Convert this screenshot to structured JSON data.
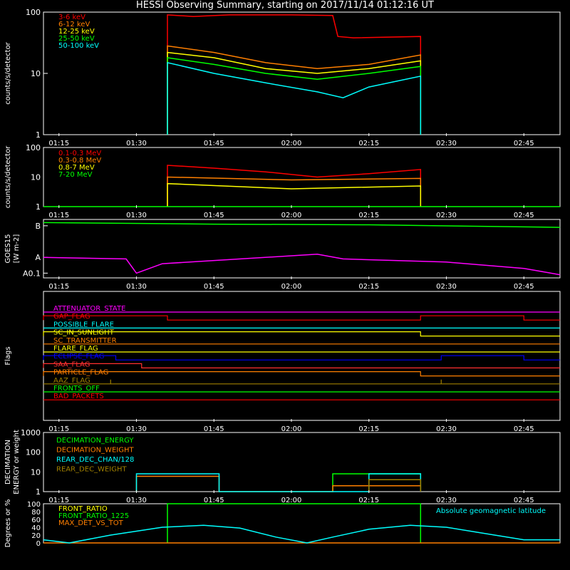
{
  "title": "HESSI Observing Summary, starting on 2017/11/14 01:12:16 UT",
  "time_ticks": [
    "01:15",
    "01:30",
    "01:45",
    "02:00",
    "02:15",
    "02:30",
    "02:45"
  ],
  "chart_data": [
    {
      "type": "line",
      "ylabel": "counts/s/detector",
      "yscale": "log",
      "ylim": [
        1,
        100
      ],
      "yticks": [
        "1",
        "10",
        "100"
      ],
      "legend_placement": "top-left",
      "series": [
        {
          "name": "3-6 keV",
          "color": "#ff0000",
          "points": [
            [
              "01:36",
              1
            ],
            [
              "01:36",
              90
            ],
            [
              "01:41",
              85
            ],
            [
              "01:48",
              90
            ],
            [
              "02:00",
              90
            ],
            [
              "02:08",
              88
            ],
            [
              "02:09",
              40
            ],
            [
              "02:12",
              38
            ],
            [
              "02:25",
              40
            ],
            [
              "02:25",
              1
            ]
          ]
        },
        {
          "name": "6-12 keV",
          "color": "#ff7f00",
          "points": [
            [
              "01:36",
              1
            ],
            [
              "01:36",
              28
            ],
            [
              "01:45",
              22
            ],
            [
              "01:55",
              15
            ],
            [
              "02:05",
              12
            ],
            [
              "02:15",
              14
            ],
            [
              "02:25",
              20
            ],
            [
              "02:25",
              1
            ]
          ]
        },
        {
          "name": "12-25 keV",
          "color": "#ffff00",
          "points": [
            [
              "01:36",
              1
            ],
            [
              "01:36",
              22
            ],
            [
              "01:45",
              18
            ],
            [
              "01:55",
              12
            ],
            [
              "02:05",
              10
            ],
            [
              "02:15",
              12
            ],
            [
              "02:25",
              16
            ],
            [
              "02:25",
              1
            ]
          ]
        },
        {
          "name": "25-50 keV",
          "color": "#00ff00",
          "points": [
            [
              "01:36",
              1
            ],
            [
              "01:36",
              18
            ],
            [
              "01:45",
              14
            ],
            [
              "01:55",
              10
            ],
            [
              "02:05",
              8
            ],
            [
              "02:15",
              10
            ],
            [
              "02:25",
              13
            ],
            [
              "02:25",
              1
            ]
          ]
        },
        {
          "name": "50-100 keV",
          "color": "#00ffff",
          "points": [
            [
              "01:36",
              1
            ],
            [
              "01:36",
              15
            ],
            [
              "01:45",
              10
            ],
            [
              "01:55",
              7
            ],
            [
              "02:05",
              5
            ],
            [
              "02:10",
              4
            ],
            [
              "02:15",
              6
            ],
            [
              "02:25",
              9
            ],
            [
              "02:25",
              1
            ]
          ]
        }
      ]
    },
    {
      "type": "line",
      "ylabel": "counts/s/detector",
      "yscale": "log",
      "ylim": [
        1,
        100
      ],
      "yticks": [
        "1",
        "10",
        "100"
      ],
      "legend_placement": "top-left",
      "series": [
        {
          "name": "0.1-0.3 MeV",
          "color": "#ff0000",
          "points": [
            [
              "01:36",
              1
            ],
            [
              "01:36",
              25
            ],
            [
              "01:45",
              20
            ],
            [
              "01:55",
              15
            ],
            [
              "02:05",
              10
            ],
            [
              "02:15",
              13
            ],
            [
              "02:25",
              18
            ],
            [
              "02:25",
              1
            ]
          ]
        },
        {
          "name": "0.3-0.8 MeV",
          "color": "#ff7f00",
          "points": [
            [
              "01:36",
              1
            ],
            [
              "01:36",
              10
            ],
            [
              "02:00",
              8
            ],
            [
              "02:25",
              9
            ],
            [
              "02:25",
              1
            ]
          ]
        },
        {
          "name": "0.8-7 MeV",
          "color": "#ffff00",
          "points": [
            [
              "01:36",
              1
            ],
            [
              "01:36",
              6
            ],
            [
              "02:00",
              4
            ],
            [
              "02:25",
              5
            ],
            [
              "02:25",
              1
            ]
          ]
        },
        {
          "name": "7-20 MeV",
          "color": "#00ff00",
          "points": [
            [
              "01:12",
              1
            ],
            [
              "02:52",
              1
            ]
          ]
        }
      ]
    },
    {
      "type": "line",
      "ylabel": "GOES15",
      "yunit": "[W m-2]",
      "yticks": [
        "A0.1",
        "A",
        "B"
      ],
      "series": [
        {
          "name": "",
          "color": "#00ff00",
          "points": [
            [
              "01:12",
              2.1
            ],
            [
              "01:45",
              2.05
            ],
            [
              "02:15",
              2.03
            ],
            [
              "02:52",
              1.95
            ]
          ]
        },
        {
          "name": "",
          "color": "#ff00ff",
          "points": [
            [
              "01:12",
              1.0
            ],
            [
              "01:28",
              0.95
            ],
            [
              "01:30",
              0.5
            ],
            [
              "01:35",
              0.8
            ],
            [
              "02:05",
              1.1
            ],
            [
              "02:10",
              0.95
            ],
            [
              "02:30",
              0.85
            ],
            [
              "02:45",
              0.65
            ],
            [
              "02:52",
              0.45
            ]
          ]
        }
      ]
    },
    {
      "type": "line",
      "ylabel": "Flags",
      "flags": [
        {
          "name": "ATTENUATOR_STATE",
          "color": "#ff00ff",
          "high": []
        },
        {
          "name": "GAP_FLAG",
          "color": "#ff0000",
          "high": [
            [
              "01:12",
              "01:36"
            ],
            [
              "02:25",
              "02:45"
            ]
          ]
        },
        {
          "name": "POSSIBLE_FLARE",
          "color": "#00ffff",
          "high": []
        },
        {
          "name": "SC_IN_SUNLIGHT",
          "color": "#ffff00",
          "high": [
            [
              "01:12",
              "02:25"
            ]
          ]
        },
        {
          "name": "SC_TRANSMITTER",
          "color": "#ff7f00",
          "high": []
        },
        {
          "name": "FLARE_FLAG",
          "color": "#ffff00",
          "high": []
        },
        {
          "name": "ECLIPSE_FLAG",
          "color": "#0000ff",
          "high": [
            [
              "01:12",
              "01:26"
            ],
            [
              "02:29",
              "02:45"
            ]
          ]
        },
        {
          "name": "SAA_FLAG",
          "color": "#ff3030",
          "high": [
            [
              "01:12",
              "01:31"
            ]
          ]
        },
        {
          "name": "PARTICLE_FLAG",
          "color": "#ff7f00",
          "high": [
            [
              "01:12",
              "02:25"
            ]
          ]
        },
        {
          "name": "AAZ_FLAG",
          "color": "#a08000",
          "high": [
            [
              "01:25",
              "01:25"
            ],
            [
              "02:29",
              "02:29"
            ]
          ]
        },
        {
          "name": "FRONTS_OFF",
          "color": "#00ff00",
          "high": []
        },
        {
          "name": "BAD_PACKETS",
          "color": "#ff0000",
          "high": []
        }
      ]
    },
    {
      "type": "line",
      "ylabel": "DECIMATION ENERGY or weight",
      "yscale": "log",
      "ylim": [
        1,
        1000
      ],
      "yticks": [
        "1",
        "10",
        "100",
        "1000"
      ],
      "legend_placement": "top-left",
      "series": [
        {
          "name": "DECIMATION_ENERGY",
          "color": "#00ff00",
          "points": [
            [
              "02:08",
              1
            ],
            [
              "02:08",
              8
            ],
            [
              "02:25",
              8
            ],
            [
              "02:25",
              1
            ]
          ]
        },
        {
          "name": "DECIMATION_WEIGHT",
          "color": "#ff7f00",
          "points": [
            [
              "01:30",
              1
            ],
            [
              "01:30",
              6
            ],
            [
              "01:46",
              6
            ],
            [
              "01:46",
              1
            ],
            [
              "02:08",
              1
            ],
            [
              "02:08",
              2
            ],
            [
              "02:25",
              2
            ],
            [
              "02:25",
              1
            ]
          ]
        },
        {
          "name": "REAR_DEC_CHAN/128",
          "color": "#00ffff",
          "points": [
            [
              "01:30",
              1
            ],
            [
              "01:30",
              8
            ],
            [
              "01:46",
              8
            ],
            [
              "01:46",
              1
            ],
            [
              "02:15",
              1
            ],
            [
              "02:15",
              8
            ],
            [
              "02:25",
              8
            ],
            [
              "02:25",
              1
            ]
          ]
        },
        {
          "name": "REAR_DEC_WEIGHT",
          "color": "#a08000",
          "points": [
            [
              "02:15",
              1
            ],
            [
              "02:15",
              4
            ],
            [
              "02:25",
              4
            ],
            [
              "02:25",
              1
            ]
          ]
        }
      ]
    },
    {
      "type": "line",
      "ylabel": "Degrees or %",
      "ylim": [
        0,
        100
      ],
      "yticks": [
        "0",
        "20",
        "40",
        "60",
        "80",
        "100"
      ],
      "legend_placement": "top-left",
      "annotation": "Absolute geomagnetic latitude",
      "series": [
        {
          "name": "FRONT_RATIO",
          "color": "#ffff00",
          "points": []
        },
        {
          "name": "FRONT_RATIO_1225",
          "color": "#00ff00",
          "points": [
            [
              "01:36",
              0
            ],
            [
              "01:36",
              100
            ],
            [
              "02:25",
              100
            ],
            [
              "02:25",
              0
            ]
          ]
        },
        {
          "name": "MAX_DET_VS_TOT",
          "color": "#ff7f00",
          "points": [
            [
              "01:12",
              0
            ],
            [
              "02:52",
              0
            ]
          ]
        },
        {
          "name": "Absolute geomagnetic latitude",
          "color": "#00ffff",
          "points": [
            [
              "01:12",
              8
            ],
            [
              "01:17",
              0
            ],
            [
              "01:25",
              20
            ],
            [
              "01:35",
              40
            ],
            [
              "01:43",
              45
            ],
            [
              "01:50",
              38
            ],
            [
              "01:57",
              15
            ],
            [
              "02:03",
              0
            ],
            [
              "02:08",
              15
            ],
            [
              "02:15",
              35
            ],
            [
              "02:23",
              45
            ],
            [
              "02:30",
              40
            ],
            [
              "02:37",
              25
            ],
            [
              "02:45",
              8
            ],
            [
              "02:52",
              8
            ]
          ]
        }
      ]
    }
  ]
}
